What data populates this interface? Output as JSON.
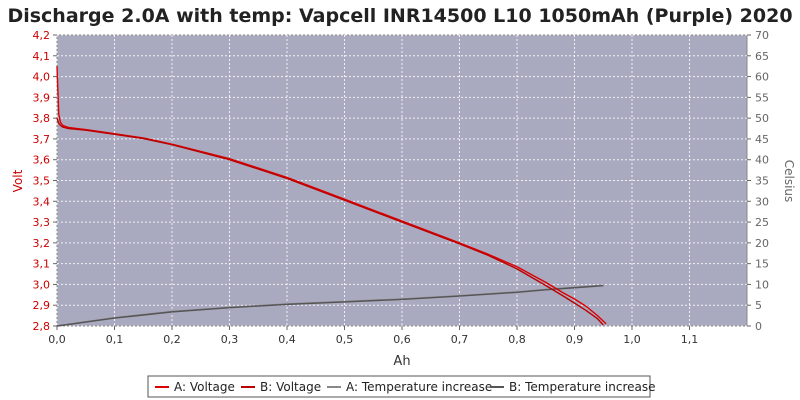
{
  "chart_data": {
    "type": "line",
    "title": "Discharge 2.0A with temp: Vapcell INR14500 L10 1050mAh (Purple) 2020",
    "xlabel": "Ah",
    "ylabel": "Volt",
    "y2label": "Celsius",
    "xlim": [
      0,
      1.2
    ],
    "ylim": [
      2.8,
      4.2
    ],
    "y2lim": [
      0,
      70
    ],
    "x_ticks": [
      "0,0",
      "0,1",
      "0,2",
      "0,3",
      "0,4",
      "0,5",
      "0,6",
      "0,7",
      "0,8",
      "0,9",
      "1,0",
      "1,1"
    ],
    "y_ticks": [
      "2,8",
      "2,9",
      "3,0",
      "3,1",
      "3,2",
      "3,3",
      "3,4",
      "3,5",
      "3,6",
      "3,7",
      "3,8",
      "3,9",
      "4,0",
      "4,1",
      "4,2"
    ],
    "y2_ticks": [
      "0",
      "5",
      "10",
      "15",
      "20",
      "25",
      "30",
      "35",
      "40",
      "45",
      "50",
      "55",
      "60",
      "65",
      "70"
    ],
    "grid": true,
    "legend_position": "bottom",
    "colors": {
      "plot_bg": "#a9a9c0",
      "voltage_a": "#dd0000",
      "voltage_b": "#bb0000",
      "temp_a": "#888888",
      "temp_b": "#555555",
      "left_axis": "#cc0000",
      "right_axis": "#666666"
    },
    "series": [
      {
        "name": "A: Voltage",
        "axis": "left",
        "x": [
          0.0,
          0.003,
          0.006,
          0.01,
          0.02,
          0.05,
          0.1,
          0.15,
          0.2,
          0.3,
          0.4,
          0.5,
          0.6,
          0.7,
          0.75,
          0.8,
          0.85,
          0.88,
          0.9,
          0.92,
          0.94,
          0.955
        ],
        "y": [
          4.05,
          3.82,
          3.78,
          3.765,
          3.755,
          3.745,
          3.725,
          3.705,
          3.675,
          3.605,
          3.515,
          3.41,
          3.305,
          3.2,
          3.145,
          3.085,
          3.01,
          2.96,
          2.93,
          2.895,
          2.85,
          2.81
        ]
      },
      {
        "name": "B: Voltage",
        "axis": "left",
        "x": [
          0.0,
          0.003,
          0.006,
          0.01,
          0.02,
          0.05,
          0.1,
          0.15,
          0.2,
          0.3,
          0.4,
          0.5,
          0.6,
          0.7,
          0.75,
          0.8,
          0.85,
          0.88,
          0.9,
          0.92,
          0.94,
          0.95
        ],
        "y": [
          3.8,
          3.775,
          3.765,
          3.757,
          3.75,
          3.742,
          3.722,
          3.702,
          3.672,
          3.6,
          3.51,
          3.405,
          3.3,
          3.195,
          3.14,
          3.075,
          2.995,
          2.945,
          2.91,
          2.875,
          2.835,
          2.805
        ]
      },
      {
        "name": "A: Temperature increase",
        "axis": "right",
        "x": [
          0.0,
          0.1,
          0.2,
          0.3,
          0.4,
          0.5,
          0.6,
          0.7,
          0.8,
          0.85,
          0.9,
          0.95
        ],
        "y": [
          0.0,
          2.0,
          3.5,
          4.5,
          5.3,
          5.9,
          6.5,
          7.3,
          8.2,
          8.8,
          9.3,
          9.8
        ]
      },
      {
        "name": "B: Temperature increase",
        "axis": "right",
        "x": [
          0.0,
          0.1,
          0.2,
          0.3,
          0.4,
          0.5,
          0.6,
          0.7,
          0.8,
          0.85,
          0.9,
          0.95
        ],
        "y": [
          0.0,
          1.9,
          3.4,
          4.4,
          5.2,
          5.8,
          6.4,
          7.2,
          8.1,
          8.7,
          9.2,
          9.7
        ]
      }
    ]
  }
}
